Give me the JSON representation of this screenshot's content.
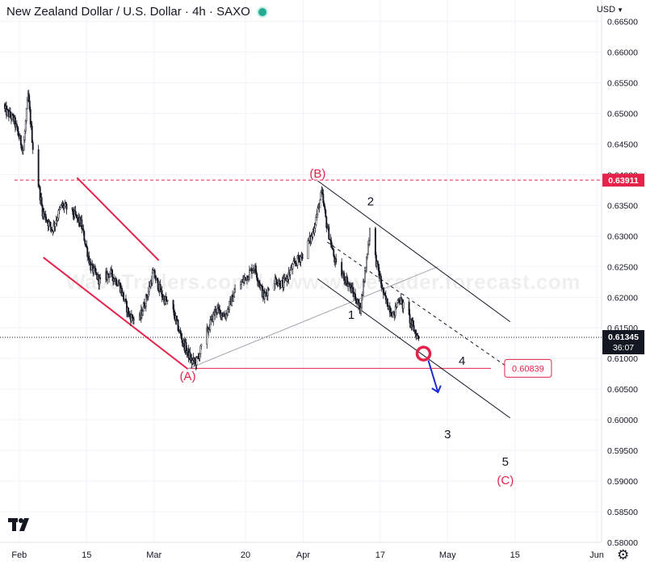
{
  "header": {
    "title": "New Zealand Dollar / U.S. Dollar · 4h · SAXO",
    "currency": "USD"
  },
  "watermark": "WaveTraders.com / www.wavetrader.forecast.com",
  "colors": {
    "candle": "#131722",
    "wave_red": "#e5234a",
    "grid": "#f0f3fa",
    "channel": "#131722",
    "trend_gray": "#a3a6af",
    "arrow_blue": "#1c2bd6",
    "live_dot": "#22ab94"
  },
  "chart_data": {
    "type": "candlestick",
    "timeframe": "4h",
    "x_axis": {
      "range": [
        "2023-01-28",
        "2023-06-02"
      ],
      "ticks": [
        {
          "label": "Feb",
          "date": "2023-02-01"
        },
        {
          "label": "15",
          "date": "2023-02-15"
        },
        {
          "label": "Mar",
          "date": "2023-03-01"
        },
        {
          "label": "20",
          "date": "2023-03-20"
        },
        {
          "label": "Apr",
          "date": "2023-04-01"
        },
        {
          "label": "17",
          "date": "2023-04-17"
        },
        {
          "label": "May",
          "date": "2023-05-01"
        },
        {
          "label": "15",
          "date": "2023-05-15"
        },
        {
          "label": "Jun",
          "date": "2023-06-01"
        }
      ]
    },
    "y_axis": {
      "range": [
        0.58,
        0.6685
      ],
      "ticks": [
        "0.66500",
        "0.66000",
        "0.65500",
        "0.65000",
        "0.64500",
        "0.64000",
        "0.63500",
        "0.63000",
        "0.62500",
        "0.62000",
        "0.61500",
        "0.61000",
        "0.60500",
        "0.60000",
        "0.59500",
        "0.59000",
        "0.58500",
        "0.58000"
      ]
    },
    "price_path": [
      [
        "2023-01-28",
        0.6515
      ],
      [
        "2023-01-31",
        0.649
      ],
      [
        "2023-02-02",
        0.644
      ],
      [
        "2023-02-03",
        0.653
      ],
      [
        "2023-02-04",
        0.6445
      ],
      [
        "2023-02-06",
        0.634
      ],
      [
        "2023-02-08",
        0.631
      ],
      [
        "2023-02-10",
        0.635
      ],
      [
        "2023-02-12",
        0.634
      ],
      [
        "2023-02-14",
        0.632
      ],
      [
        "2023-02-16",
        0.625
      ],
      [
        "2023-02-18",
        0.6225
      ],
      [
        "2023-02-20",
        0.624
      ],
      [
        "2023-02-22",
        0.622
      ],
      [
        "2023-02-24",
        0.617
      ],
      [
        "2023-02-26",
        0.616
      ],
      [
        "2023-02-28",
        0.621
      ],
      [
        "2023-03-01",
        0.624
      ],
      [
        "2023-03-03",
        0.62
      ],
      [
        "2023-03-05",
        0.618
      ],
      [
        "2023-03-07",
        0.613
      ],
      [
        "2023-03-09",
        0.6095
      ],
      [
        "2023-03-10",
        0.6095
      ],
      [
        "2023-03-12",
        0.614
      ],
      [
        "2023-03-14",
        0.618
      ],
      [
        "2023-03-16",
        0.617
      ],
      [
        "2023-03-18",
        0.621
      ],
      [
        "2023-03-20",
        0.623
      ],
      [
        "2023-03-22",
        0.625
      ],
      [
        "2023-03-24",
        0.62
      ],
      [
        "2023-03-26",
        0.623
      ],
      [
        "2023-03-28",
        0.622
      ],
      [
        "2023-03-30",
        0.625
      ],
      [
        "2023-04-01",
        0.627
      ],
      [
        "2023-04-03",
        0.63
      ],
      [
        "2023-04-05",
        0.637
      ],
      [
        "2023-04-06",
        0.632
      ],
      [
        "2023-04-08",
        0.625
      ],
      [
        "2023-04-10",
        0.623
      ],
      [
        "2023-04-12",
        0.62
      ],
      [
        "2023-04-13",
        0.618
      ],
      [
        "2023-04-14",
        0.624
      ],
      [
        "2023-04-15",
        0.631
      ],
      [
        "2023-04-16",
        0.627
      ],
      [
        "2023-04-18",
        0.62
      ],
      [
        "2023-04-20",
        0.617
      ],
      [
        "2023-04-21",
        0.62
      ],
      [
        "2023-04-23",
        0.617
      ],
      [
        "2023-04-24",
        0.615
      ],
      [
        "2023-04-25",
        0.6134
      ]
    ],
    "last_price": {
      "value": 0.61345,
      "label": "0.61345",
      "countdown": "36:07"
    },
    "levels": [
      {
        "value": 0.63911,
        "label": "0.63911",
        "style": "dashed",
        "color": "#e5234a",
        "from": "2023-01-31"
      },
      {
        "value": 0.60839,
        "label": "0.60839",
        "style": "solid",
        "color": "#e5234a",
        "from": "2023-03-08",
        "to": "2023-05-10"
      }
    ],
    "wave_labels": [
      {
        "text": "(A)",
        "date": "2023-03-08",
        "price": 0.6065,
        "color": "#e5234a"
      },
      {
        "text": "(B)",
        "date": "2023-04-04",
        "price": 0.6395,
        "color": "#e5234a"
      },
      {
        "text": "1",
        "date": "2023-04-11",
        "price": 0.6165,
        "color": "#131722"
      },
      {
        "text": "2",
        "date": "2023-04-15",
        "price": 0.635,
        "color": "#131722"
      },
      {
        "text": "3",
        "date": "2023-05-01",
        "price": 0.597,
        "color": "#131722"
      },
      {
        "text": "4",
        "date": "2023-05-04",
        "price": 0.609,
        "color": "#131722"
      },
      {
        "text": "5",
        "date": "2023-05-13",
        "price": 0.5925,
        "color": "#131722"
      },
      {
        "text": "(C)",
        "date": "2023-05-13",
        "price": 0.5895,
        "color": "#e5234a"
      }
    ],
    "trendlines": [
      {
        "role": "wedge-upper",
        "color": "#e5234a",
        "from": [
          "2023-02-13",
          0.6395
        ],
        "to": [
          "2023-03-02",
          0.626
        ]
      },
      {
        "role": "wedge-lower",
        "color": "#e5234a",
        "from": [
          "2023-02-06",
          0.6265
        ],
        "to": [
          "2023-03-08",
          0.6083
        ]
      },
      {
        "role": "rising-gray",
        "color": "#a3a6af",
        "from": [
          "2023-03-08",
          0.6083
        ],
        "to": [
          "2023-04-29",
          0.625
        ]
      },
      {
        "role": "channel-upper",
        "color": "#131722",
        "from": [
          "2023-04-04",
          0.639
        ],
        "to": [
          "2023-05-14",
          0.616
        ]
      },
      {
        "role": "channel-lower",
        "color": "#131722",
        "from": [
          "2023-04-04",
          0.623
        ],
        "to": [
          "2023-05-14",
          0.6003
        ]
      },
      {
        "role": "channel-mid",
        "color": "#131722",
        "dashed": true,
        "from": [
          "2023-04-06",
          0.629
        ],
        "to": [
          "2023-05-14",
          0.6083
        ]
      }
    ],
    "markers": [
      {
        "type": "circle",
        "date": "2023-04-26",
        "price": 0.6108,
        "color": "#e5234a"
      },
      {
        "type": "arrow",
        "from": [
          "2023-04-27",
          0.6097
        ],
        "to": [
          "2023-04-29",
          0.6045
        ],
        "color": "#1c2bd6"
      }
    ]
  }
}
